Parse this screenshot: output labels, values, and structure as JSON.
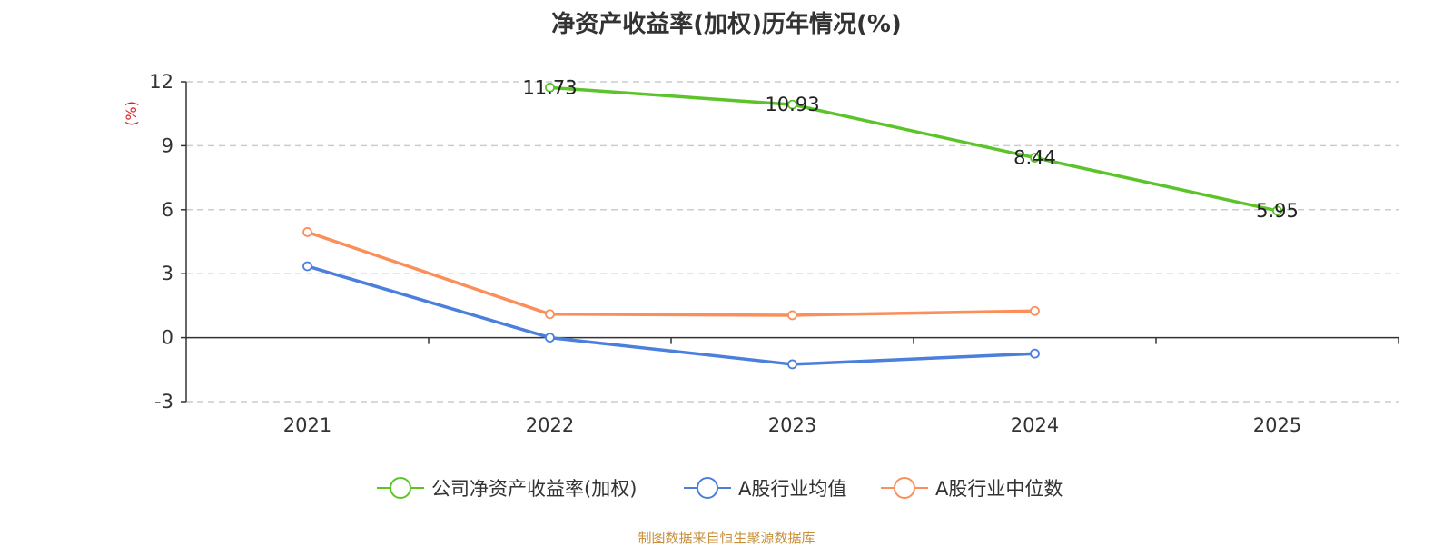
{
  "title": "净资产收益率(加权)历年情况(%)",
  "source": "制图数据来自恒生聚源数据库",
  "chart_data": {
    "type": "line",
    "title": "净资产收益率(加权)历年情况(%)",
    "ylabel": "(%)",
    "xlabel": "",
    "categories": [
      "2021",
      "2022",
      "2023",
      "2024",
      "2025"
    ],
    "ylim": [
      -3,
      12
    ],
    "yticks": [
      "-3",
      "0",
      "3",
      "6",
      "9",
      "12"
    ],
    "grid": true,
    "legend_position": "bottom",
    "series": [
      {
        "name": "公司净资产收益率(加权)",
        "color": "#5cc42a",
        "values": [
          null,
          11.73,
          10.93,
          8.44,
          5.95
        ],
        "labels": [
          "",
          "11.73",
          "10.93",
          "8.44",
          "5.95"
        ]
      },
      {
        "name": "A股行业均值",
        "color": "#4a7fdc",
        "values": [
          3.35,
          0.0,
          -1.25,
          -0.75,
          null
        ]
      },
      {
        "name": "A股行业中位数",
        "color": "#fa8f5a",
        "values": [
          4.95,
          1.1,
          1.05,
          1.25,
          null
        ]
      }
    ]
  }
}
